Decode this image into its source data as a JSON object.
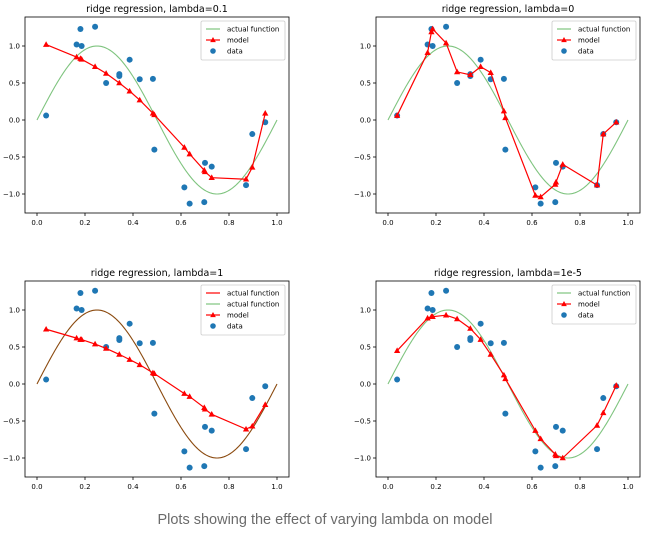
{
  "caption": "Plots showing the effect of varying lambda on model",
  "colors": {
    "actual_green": "#7fc47f",
    "actual_brown": "#8b4a0f",
    "actual_red": "#ff0000",
    "model": "#ff0000",
    "data": "#1f77b4",
    "axis": "#000000"
  },
  "chart_data": [
    {
      "type": "line",
      "title": "ridge regression, lambda=0.1",
      "xlim": [
        -0.05,
        1.05
      ],
      "ylim": [
        -1.25,
        1.4
      ],
      "xticks": [
        "0.0",
        "0.2",
        "0.4",
        "0.6",
        "0.8",
        "1.0"
      ],
      "yticks": [
        "1.0",
        "0.5",
        "0.0",
        "−0.5",
        "−1.0"
      ],
      "xtick_values": [
        0,
        0.2,
        0.4,
        0.6,
        0.8,
        1.0
      ],
      "ytick_values": [
        1.0,
        0.5,
        0.0,
        -0.5,
        -1.0
      ],
      "legend": [
        "actual function",
        "model",
        "data"
      ],
      "legend_position": "top-right",
      "actual_function": {
        "label": "actual function",
        "formula": "sin(2*pi*x)",
        "x_range": [
          0,
          1
        ],
        "color": "green"
      },
      "model": {
        "label": "model",
        "x": [
          0.038,
          0.165,
          0.181,
          0.186,
          0.242,
          0.288,
          0.343,
          0.386,
          0.428,
          0.483,
          0.489,
          0.614,
          0.636,
          0.697,
          0.7,
          0.728,
          0.871,
          0.897,
          0.951
        ],
        "y": [
          1.02,
          0.85,
          0.83,
          0.82,
          0.72,
          0.63,
          0.5,
          0.39,
          0.27,
          0.09,
          0.07,
          -0.37,
          -0.46,
          -0.68,
          -0.7,
          -0.78,
          -0.8,
          -0.64,
          0.09
        ]
      },
      "data": {
        "label": "data",
        "x": [
          0.038,
          0.165,
          0.181,
          0.186,
          0.242,
          0.288,
          0.343,
          0.343,
          0.386,
          0.428,
          0.483,
          0.489,
          0.614,
          0.636,
          0.697,
          0.7,
          0.728,
          0.871,
          0.897,
          0.951
        ],
        "y": [
          0.06,
          1.02,
          1.23,
          1.0,
          1.26,
          0.5,
          0.595,
          0.62,
          0.815,
          0.55,
          0.555,
          -0.4,
          -0.91,
          -1.13,
          -1.11,
          -0.58,
          -0.63,
          -0.88,
          -0.19,
          -0.03
        ]
      }
    },
    {
      "type": "line",
      "title": "ridge regression, lambda=0",
      "xlim": [
        -0.05,
        1.05
      ],
      "ylim": [
        -1.25,
        1.4
      ],
      "xticks": [
        "0.0",
        "0.2",
        "0.4",
        "0.6",
        "0.8",
        "1.0"
      ],
      "yticks": [
        "1.0",
        "0.5",
        "0.0",
        "−0.5",
        "−1.0"
      ],
      "xtick_values": [
        0,
        0.2,
        0.4,
        0.6,
        0.8,
        1.0
      ],
      "ytick_values": [
        1.0,
        0.5,
        0.0,
        -0.5,
        -1.0
      ],
      "legend": [
        "actual function",
        "model",
        "data"
      ],
      "legend_position": "top-right",
      "actual_function": {
        "label": "actual function",
        "formula": "sin(2*pi*x)",
        "x_range": [
          0,
          1
        ],
        "color": "green"
      },
      "model": {
        "label": "model",
        "x": [
          0.038,
          0.165,
          0.181,
          0.186,
          0.242,
          0.288,
          0.343,
          0.386,
          0.428,
          0.483,
          0.489,
          0.614,
          0.636,
          0.697,
          0.7,
          0.728,
          0.871,
          0.897,
          0.951
        ],
        "y": [
          0.06,
          0.91,
          1.19,
          1.23,
          1.04,
          0.65,
          0.61,
          0.72,
          0.64,
          0.12,
          0.03,
          -1.02,
          -1.04,
          -0.87,
          -0.84,
          -0.6,
          -0.88,
          -0.19,
          -0.03
        ]
      },
      "data": {
        "label": "data",
        "x": [
          0.038,
          0.165,
          0.181,
          0.186,
          0.242,
          0.288,
          0.343,
          0.343,
          0.386,
          0.428,
          0.483,
          0.489,
          0.614,
          0.636,
          0.697,
          0.7,
          0.728,
          0.871,
          0.897,
          0.951
        ],
        "y": [
          0.06,
          1.02,
          1.23,
          1.0,
          1.26,
          0.5,
          0.595,
          0.62,
          0.815,
          0.55,
          0.555,
          -0.4,
          -0.91,
          -1.13,
          -1.11,
          -0.58,
          -0.63,
          -0.88,
          -0.19,
          -0.03
        ]
      }
    },
    {
      "type": "line",
      "title": "ridge regression, lambda=1",
      "xlim": [
        -0.05,
        1.05
      ],
      "ylim": [
        -1.25,
        1.4
      ],
      "xticks": [
        "0.0",
        "0.2",
        "0.4",
        "0.6",
        "0.8",
        "1.0"
      ],
      "yticks": [
        "1.0",
        "0.5",
        "0.0",
        "−0.5",
        "−1.0"
      ],
      "xtick_values": [
        0,
        0.2,
        0.4,
        0.6,
        0.8,
        1.0
      ],
      "ytick_values": [
        1.0,
        0.5,
        0.0,
        -0.5,
        -1.0
      ],
      "legend": [
        "actual function",
        "actual function",
        "model",
        "data"
      ],
      "legend_position": "top-right",
      "actual_function": {
        "label": "actual function",
        "formula": "sin(2*pi*x)",
        "x_range": [
          0,
          1
        ],
        "color": "brown"
      },
      "legend_extra": [
        {
          "label": "actual function",
          "color": "red"
        },
        {
          "label": "actual function",
          "color": "green"
        }
      ],
      "model": {
        "label": "model",
        "x": [
          0.038,
          0.165,
          0.181,
          0.186,
          0.242,
          0.288,
          0.343,
          0.386,
          0.428,
          0.483,
          0.489,
          0.614,
          0.636,
          0.697,
          0.7,
          0.728,
          0.871,
          0.897,
          0.951
        ],
        "y": [
          0.74,
          0.62,
          0.6,
          0.6,
          0.54,
          0.48,
          0.4,
          0.33,
          0.26,
          0.15,
          0.14,
          -0.13,
          -0.17,
          -0.32,
          -0.34,
          -0.41,
          -0.61,
          -0.57,
          -0.28
        ]
      },
      "data": {
        "label": "data",
        "x": [
          0.038,
          0.165,
          0.181,
          0.186,
          0.242,
          0.288,
          0.343,
          0.343,
          0.386,
          0.428,
          0.483,
          0.489,
          0.614,
          0.636,
          0.697,
          0.7,
          0.728,
          0.871,
          0.897,
          0.951
        ],
        "y": [
          0.06,
          1.02,
          1.23,
          1.0,
          1.26,
          0.5,
          0.595,
          0.62,
          0.815,
          0.55,
          0.555,
          -0.4,
          -0.91,
          -1.13,
          -1.11,
          -0.58,
          -0.63,
          -0.88,
          -0.19,
          -0.03
        ]
      }
    },
    {
      "type": "line",
      "title": "ridge regression, lambda=1e-5",
      "xlim": [
        -0.05,
        1.05
      ],
      "ylim": [
        -1.25,
        1.4
      ],
      "xticks": [
        "0.0",
        "0.2",
        "0.4",
        "0.6",
        "0.8",
        "1.0"
      ],
      "yticks": [
        "1.0",
        "0.5",
        "0.0",
        "−0.5",
        "−1.0"
      ],
      "xtick_values": [
        0,
        0.2,
        0.4,
        0.6,
        0.8,
        1.0
      ],
      "ytick_values": [
        1.0,
        0.5,
        0.0,
        -0.5,
        -1.0
      ],
      "legend": [
        "actual function",
        "model",
        "data"
      ],
      "legend_position": "top-right",
      "actual_function": {
        "label": "actual function",
        "formula": "sin(2*pi*x)",
        "x_range": [
          0,
          1
        ],
        "color": "green"
      },
      "model": {
        "label": "model",
        "x": [
          0.038,
          0.165,
          0.181,
          0.186,
          0.242,
          0.288,
          0.343,
          0.386,
          0.428,
          0.483,
          0.489,
          0.614,
          0.636,
          0.697,
          0.7,
          0.728,
          0.871,
          0.897,
          0.951
        ],
        "y": [
          0.45,
          0.89,
          0.91,
          0.91,
          0.93,
          0.88,
          0.75,
          0.6,
          0.4,
          0.12,
          0.07,
          -0.63,
          -0.74,
          -0.95,
          -0.97,
          -1.0,
          -0.56,
          -0.39,
          -0.02
        ]
      },
      "data": {
        "label": "data",
        "x": [
          0.038,
          0.165,
          0.181,
          0.186,
          0.242,
          0.288,
          0.343,
          0.343,
          0.386,
          0.428,
          0.483,
          0.489,
          0.614,
          0.636,
          0.697,
          0.7,
          0.728,
          0.871,
          0.897,
          0.951
        ],
        "y": [
          0.06,
          1.02,
          1.23,
          1.0,
          1.26,
          0.5,
          0.595,
          0.62,
          0.815,
          0.55,
          0.555,
          -0.4,
          -0.91,
          -1.13,
          -1.11,
          -0.58,
          -0.63,
          -0.88,
          -0.19,
          -0.03
        ]
      }
    }
  ]
}
